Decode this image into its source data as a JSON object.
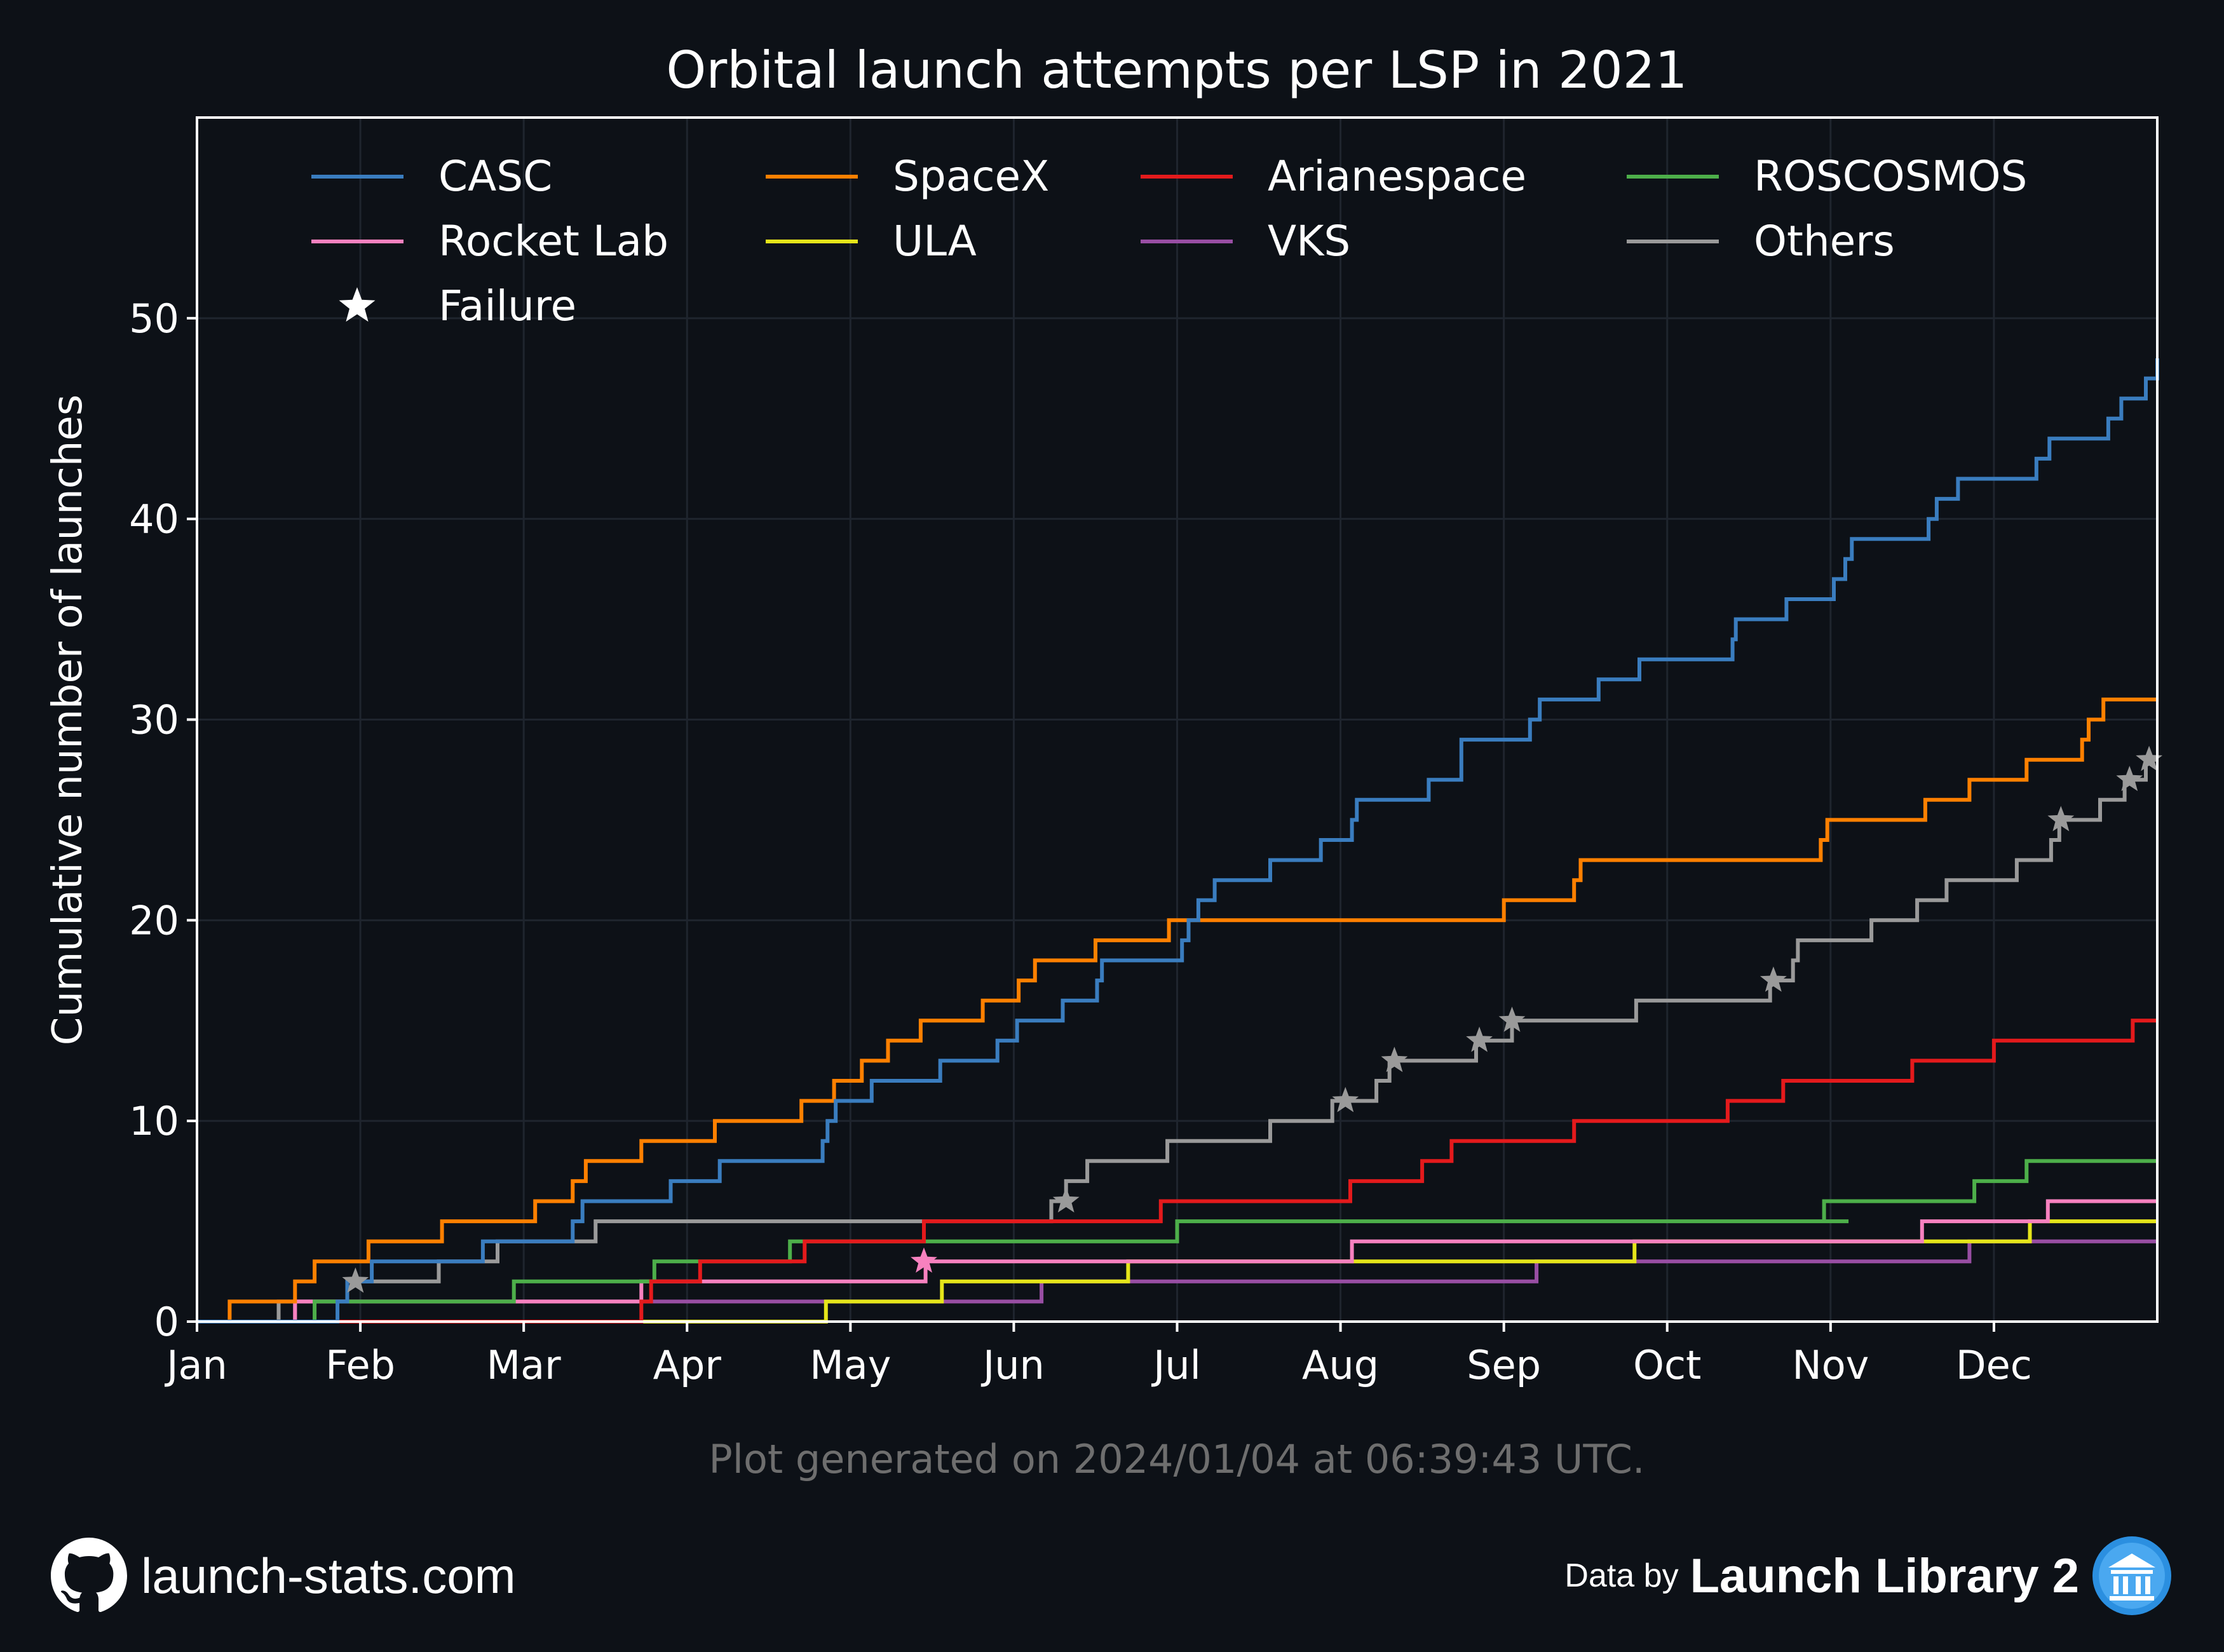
{
  "title": "Orbital launch attempts per LSP in 2021",
  "generated_note": "Plot generated on 2024/01/04 at 06:39:43 UTC.",
  "footer": {
    "site": "launch-stats.com",
    "credit_prefix": "Data by",
    "credit_name": "Launch Library 2",
    "github_icon": "github-icon",
    "ll2_icon": "launch-library-logo-icon"
  },
  "colors": {
    "background": "#0d1117",
    "CASC": "#3a7dbf",
    "SpaceX": "#ff8000",
    "Arianespace": "#e41a1c",
    "ROSCOSMOS": "#4daf4a",
    "Rocket Lab": "#f781bf",
    "ULA": "#e5e51a",
    "VKS": "#984ea3",
    "Others": "#9a9a9a"
  },
  "chart_data": {
    "type": "line",
    "step": true,
    "title": "Orbital launch attempts per LSP in 2021",
    "xlabel": "",
    "ylabel": "Cumulative number of launches",
    "x_unit": "month of 2021 (1 = Jan 1)",
    "xlim": [
      1,
      13
    ],
    "ylim": [
      0,
      60
    ],
    "x_ticks": [
      {
        "value": 1,
        "label": "Jan"
      },
      {
        "value": 2,
        "label": "Feb"
      },
      {
        "value": 3,
        "label": "Mar"
      },
      {
        "value": 4,
        "label": "Apr"
      },
      {
        "value": 5,
        "label": "May"
      },
      {
        "value": 6,
        "label": "Jun"
      },
      {
        "value": 7,
        "label": "Jul"
      },
      {
        "value": 8,
        "label": "Aug"
      },
      {
        "value": 9,
        "label": "Sep"
      },
      {
        "value": 10,
        "label": "Oct"
      },
      {
        "value": 11,
        "label": "Nov"
      },
      {
        "value": 12,
        "label": "Dec"
      }
    ],
    "y_ticks": [
      0,
      10,
      20,
      30,
      40,
      50
    ],
    "grid": true,
    "legend_position": "top",
    "legend": [
      "CASC",
      "SpaceX",
      "Arianespace",
      "ROSCOSMOS",
      "Rocket Lab",
      "ULA",
      "VKS",
      "Others",
      "Failure"
    ],
    "failure_label": "Failure",
    "series": [
      {
        "name": "CASC",
        "steps": [
          [
            1.86,
            1
          ],
          [
            1.92,
            2
          ],
          [
            2.07,
            3
          ],
          [
            2.75,
            4
          ],
          [
            3.3,
            5
          ],
          [
            3.36,
            6
          ],
          [
            3.9,
            7
          ],
          [
            4.2,
            8
          ],
          [
            4.83,
            9
          ],
          [
            4.86,
            10
          ],
          [
            4.91,
            11
          ],
          [
            5.13,
            12
          ],
          [
            5.55,
            13
          ],
          [
            5.9,
            14
          ],
          [
            6.02,
            15
          ],
          [
            6.3,
            16
          ],
          [
            6.51,
            17
          ],
          [
            6.54,
            18
          ],
          [
            7.03,
            19
          ],
          [
            7.07,
            20
          ],
          [
            7.13,
            21
          ],
          [
            7.23,
            22
          ],
          [
            7.57,
            23
          ],
          [
            7.88,
            24
          ],
          [
            8.07,
            25
          ],
          [
            8.1,
            26
          ],
          [
            8.54,
            27
          ],
          [
            8.74,
            29
          ],
          [
            9.16,
            30
          ],
          [
            9.22,
            31
          ],
          [
            9.58,
            32
          ],
          [
            9.83,
            33
          ],
          [
            10.4,
            34
          ],
          [
            10.42,
            35
          ],
          [
            10.73,
            36
          ],
          [
            11.02,
            37
          ],
          [
            11.09,
            38
          ],
          [
            11.13,
            39
          ],
          [
            11.6,
            40
          ],
          [
            11.65,
            41
          ],
          [
            11.78,
            42
          ],
          [
            12.26,
            43
          ],
          [
            12.34,
            44
          ],
          [
            12.7,
            45
          ],
          [
            12.78,
            46
          ],
          [
            12.93,
            47
          ],
          [
            13.0,
            48
          ]
        ]
      },
      {
        "name": "SpaceX",
        "steps": [
          [
            1.2,
            1
          ],
          [
            1.6,
            2
          ],
          [
            1.72,
            3
          ],
          [
            2.05,
            4
          ],
          [
            2.5,
            5
          ],
          [
            3.07,
            6
          ],
          [
            3.3,
            7
          ],
          [
            3.38,
            8
          ],
          [
            3.72,
            9
          ],
          [
            4.17,
            10
          ],
          [
            4.7,
            11
          ],
          [
            4.9,
            12
          ],
          [
            5.07,
            13
          ],
          [
            5.23,
            14
          ],
          [
            5.43,
            15
          ],
          [
            5.81,
            16
          ],
          [
            6.03,
            17
          ],
          [
            6.13,
            18
          ],
          [
            6.5,
            19
          ],
          [
            6.95,
            20
          ],
          [
            9.0,
            21
          ],
          [
            9.43,
            22
          ],
          [
            9.47,
            23
          ],
          [
            10.94,
            24
          ],
          [
            10.98,
            25
          ],
          [
            11.58,
            26
          ],
          [
            11.85,
            27
          ],
          [
            12.2,
            28
          ],
          [
            12.54,
            29
          ],
          [
            12.58,
            30
          ],
          [
            12.67,
            31
          ]
        ]
      },
      {
        "name": "Arianespace",
        "steps": [
          [
            3.72,
            1
          ],
          [
            3.78,
            2
          ],
          [
            4.08,
            3
          ],
          [
            4.72,
            4
          ],
          [
            5.45,
            5
          ],
          [
            6.9,
            6
          ],
          [
            8.06,
            7
          ],
          [
            8.5,
            8
          ],
          [
            8.68,
            9
          ],
          [
            9.43,
            10
          ],
          [
            10.37,
            11
          ],
          [
            10.71,
            12
          ],
          [
            11.5,
            13
          ],
          [
            12.0,
            14
          ],
          [
            12.85,
            15
          ],
          [
            12.95,
            15
          ]
        ]
      },
      {
        "name": "ROSCOSMOS",
        "steps": [
          [
            1.72,
            1
          ],
          [
            2.94,
            2
          ],
          [
            3.8,
            3
          ],
          [
            4.63,
            4
          ],
          [
            7.0,
            5
          ],
          [
            7.1,
            5
          ],
          [
            11.0,
            5
          ],
          [
            11.11,
            5
          ],
          [
            10.11,
            5
          ],
          [
            10.96,
            6
          ],
          [
            11.88,
            7
          ],
          [
            12.2,
            8
          ]
        ]
      },
      {
        "name": "Rocket Lab",
        "steps": [
          [
            1.6,
            1
          ],
          [
            3.72,
            2
          ],
          [
            5.46,
            3
          ],
          [
            8.07,
            4
          ],
          [
            11.56,
            5
          ],
          [
            12.33,
            6
          ]
        ]
      },
      {
        "name": "ULA",
        "steps": [
          [
            4.85,
            1
          ],
          [
            5.56,
            2
          ],
          [
            6.7,
            3
          ],
          [
            9.8,
            4
          ],
          [
            12.22,
            5
          ]
        ]
      },
      {
        "name": "VKS",
        "steps": [
          [
            1.6,
            1
          ],
          [
            6.17,
            2
          ],
          [
            9.2,
            3
          ],
          [
            11.85,
            4
          ]
        ]
      },
      {
        "name": "Others",
        "steps": [
          [
            1.5,
            1
          ],
          [
            1.92,
            2
          ],
          [
            2.48,
            3
          ],
          [
            2.84,
            4
          ],
          [
            3.44,
            5
          ],
          [
            6.23,
            6
          ],
          [
            6.32,
            7
          ],
          [
            6.45,
            8
          ],
          [
            6.94,
            9
          ],
          [
            7.57,
            10
          ],
          [
            7.95,
            11
          ],
          [
            8.22,
            12
          ],
          [
            8.3,
            13
          ],
          [
            8.83,
            14
          ],
          [
            9.05,
            15
          ],
          [
            9.81,
            16
          ],
          [
            10.63,
            17
          ],
          [
            10.77,
            18
          ],
          [
            10.8,
            19
          ],
          [
            11.25,
            20
          ],
          [
            11.53,
            21
          ],
          [
            11.71,
            22
          ],
          [
            12.14,
            23
          ],
          [
            12.35,
            24
          ],
          [
            12.4,
            25
          ],
          [
            12.65,
            26
          ],
          [
            12.8,
            27
          ],
          [
            12.93,
            28
          ]
        ]
      }
    ],
    "failures": [
      {
        "series": "Others",
        "x": 1.97,
        "y": 2
      },
      {
        "series": "Rocket Lab",
        "x": 5.45,
        "y": 3
      },
      {
        "series": "Others",
        "x": 6.32,
        "y": 6
      },
      {
        "series": "Others",
        "x": 8.03,
        "y": 11
      },
      {
        "series": "Others",
        "x": 8.33,
        "y": 13
      },
      {
        "series": "Others",
        "x": 8.85,
        "y": 14
      },
      {
        "series": "Others",
        "x": 9.05,
        "y": 15
      },
      {
        "series": "Others",
        "x": 10.65,
        "y": 17
      },
      {
        "series": "Others",
        "x": 12.41,
        "y": 25
      },
      {
        "series": "Others",
        "x": 12.83,
        "y": 27
      },
      {
        "series": "Others",
        "x": 12.95,
        "y": 28
      }
    ]
  }
}
